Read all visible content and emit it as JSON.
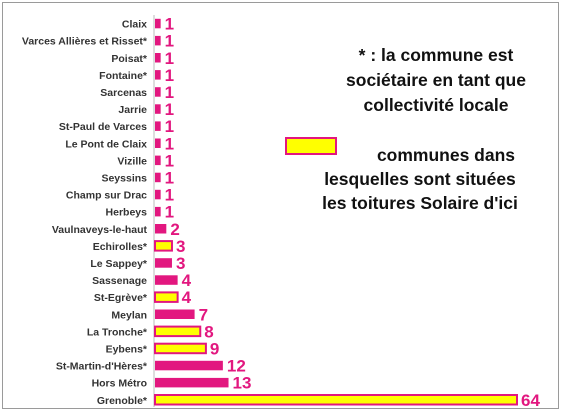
{
  "chart_data": {
    "type": "bar",
    "orientation": "horizontal",
    "categories": [
      "Claix",
      "Varces Allières et Risset*",
      "Poisat*",
      "Fontaine*",
      "Sarcenas",
      "Jarrie",
      "St-Paul de Varces",
      "Le Pont de Claix",
      "Vizille",
      "Seyssins",
      "Champ sur Drac",
      "Herbeys",
      "Vaulnaveys-le-haut",
      "Echirolles*",
      "Le Sappey*",
      "Sassenage",
      "St-Egrève*",
      "Meylan",
      "La Tronche*",
      "Eybens*",
      "St-Martin-d'Hères*",
      "Hors Métro",
      "Grenoble*"
    ],
    "values": [
      1,
      1,
      1,
      1,
      1,
      1,
      1,
      1,
      1,
      1,
      1,
      1,
      2,
      3,
      3,
      4,
      4,
      7,
      8,
      9,
      12,
      13,
      64
    ],
    "highlighted": [
      false,
      false,
      false,
      false,
      false,
      false,
      false,
      false,
      false,
      false,
      false,
      false,
      false,
      true,
      false,
      false,
      true,
      false,
      true,
      true,
      false,
      false,
      true
    ],
    "data_labels": [
      "1",
      "1",
      "1",
      "1",
      "1",
      "1",
      "1",
      "1",
      "1",
      "1",
      "1",
      "1",
      "2",
      "3",
      "3",
      "4",
      "4",
      "7",
      "8",
      "9",
      "12",
      "13",
      "64"
    ],
    "xlim": [
      0,
      64
    ],
    "grid": false,
    "legend": {
      "position": "right",
      "label_lines": [
        "communes dans",
        "lesquelles sont situées",
        "les toitures Solaire d'ici"
      ]
    },
    "annotation_lines": [
      "* : la commune est",
      "sociétaire en tant que",
      "collectivité locale"
    ]
  },
  "colors": {
    "bar_fill": "#e2177f",
    "highlight_fill": "#ffff00",
    "highlight_stroke": "#e2177f",
    "label_text": "#e2177f",
    "category_text": "#333333"
  }
}
